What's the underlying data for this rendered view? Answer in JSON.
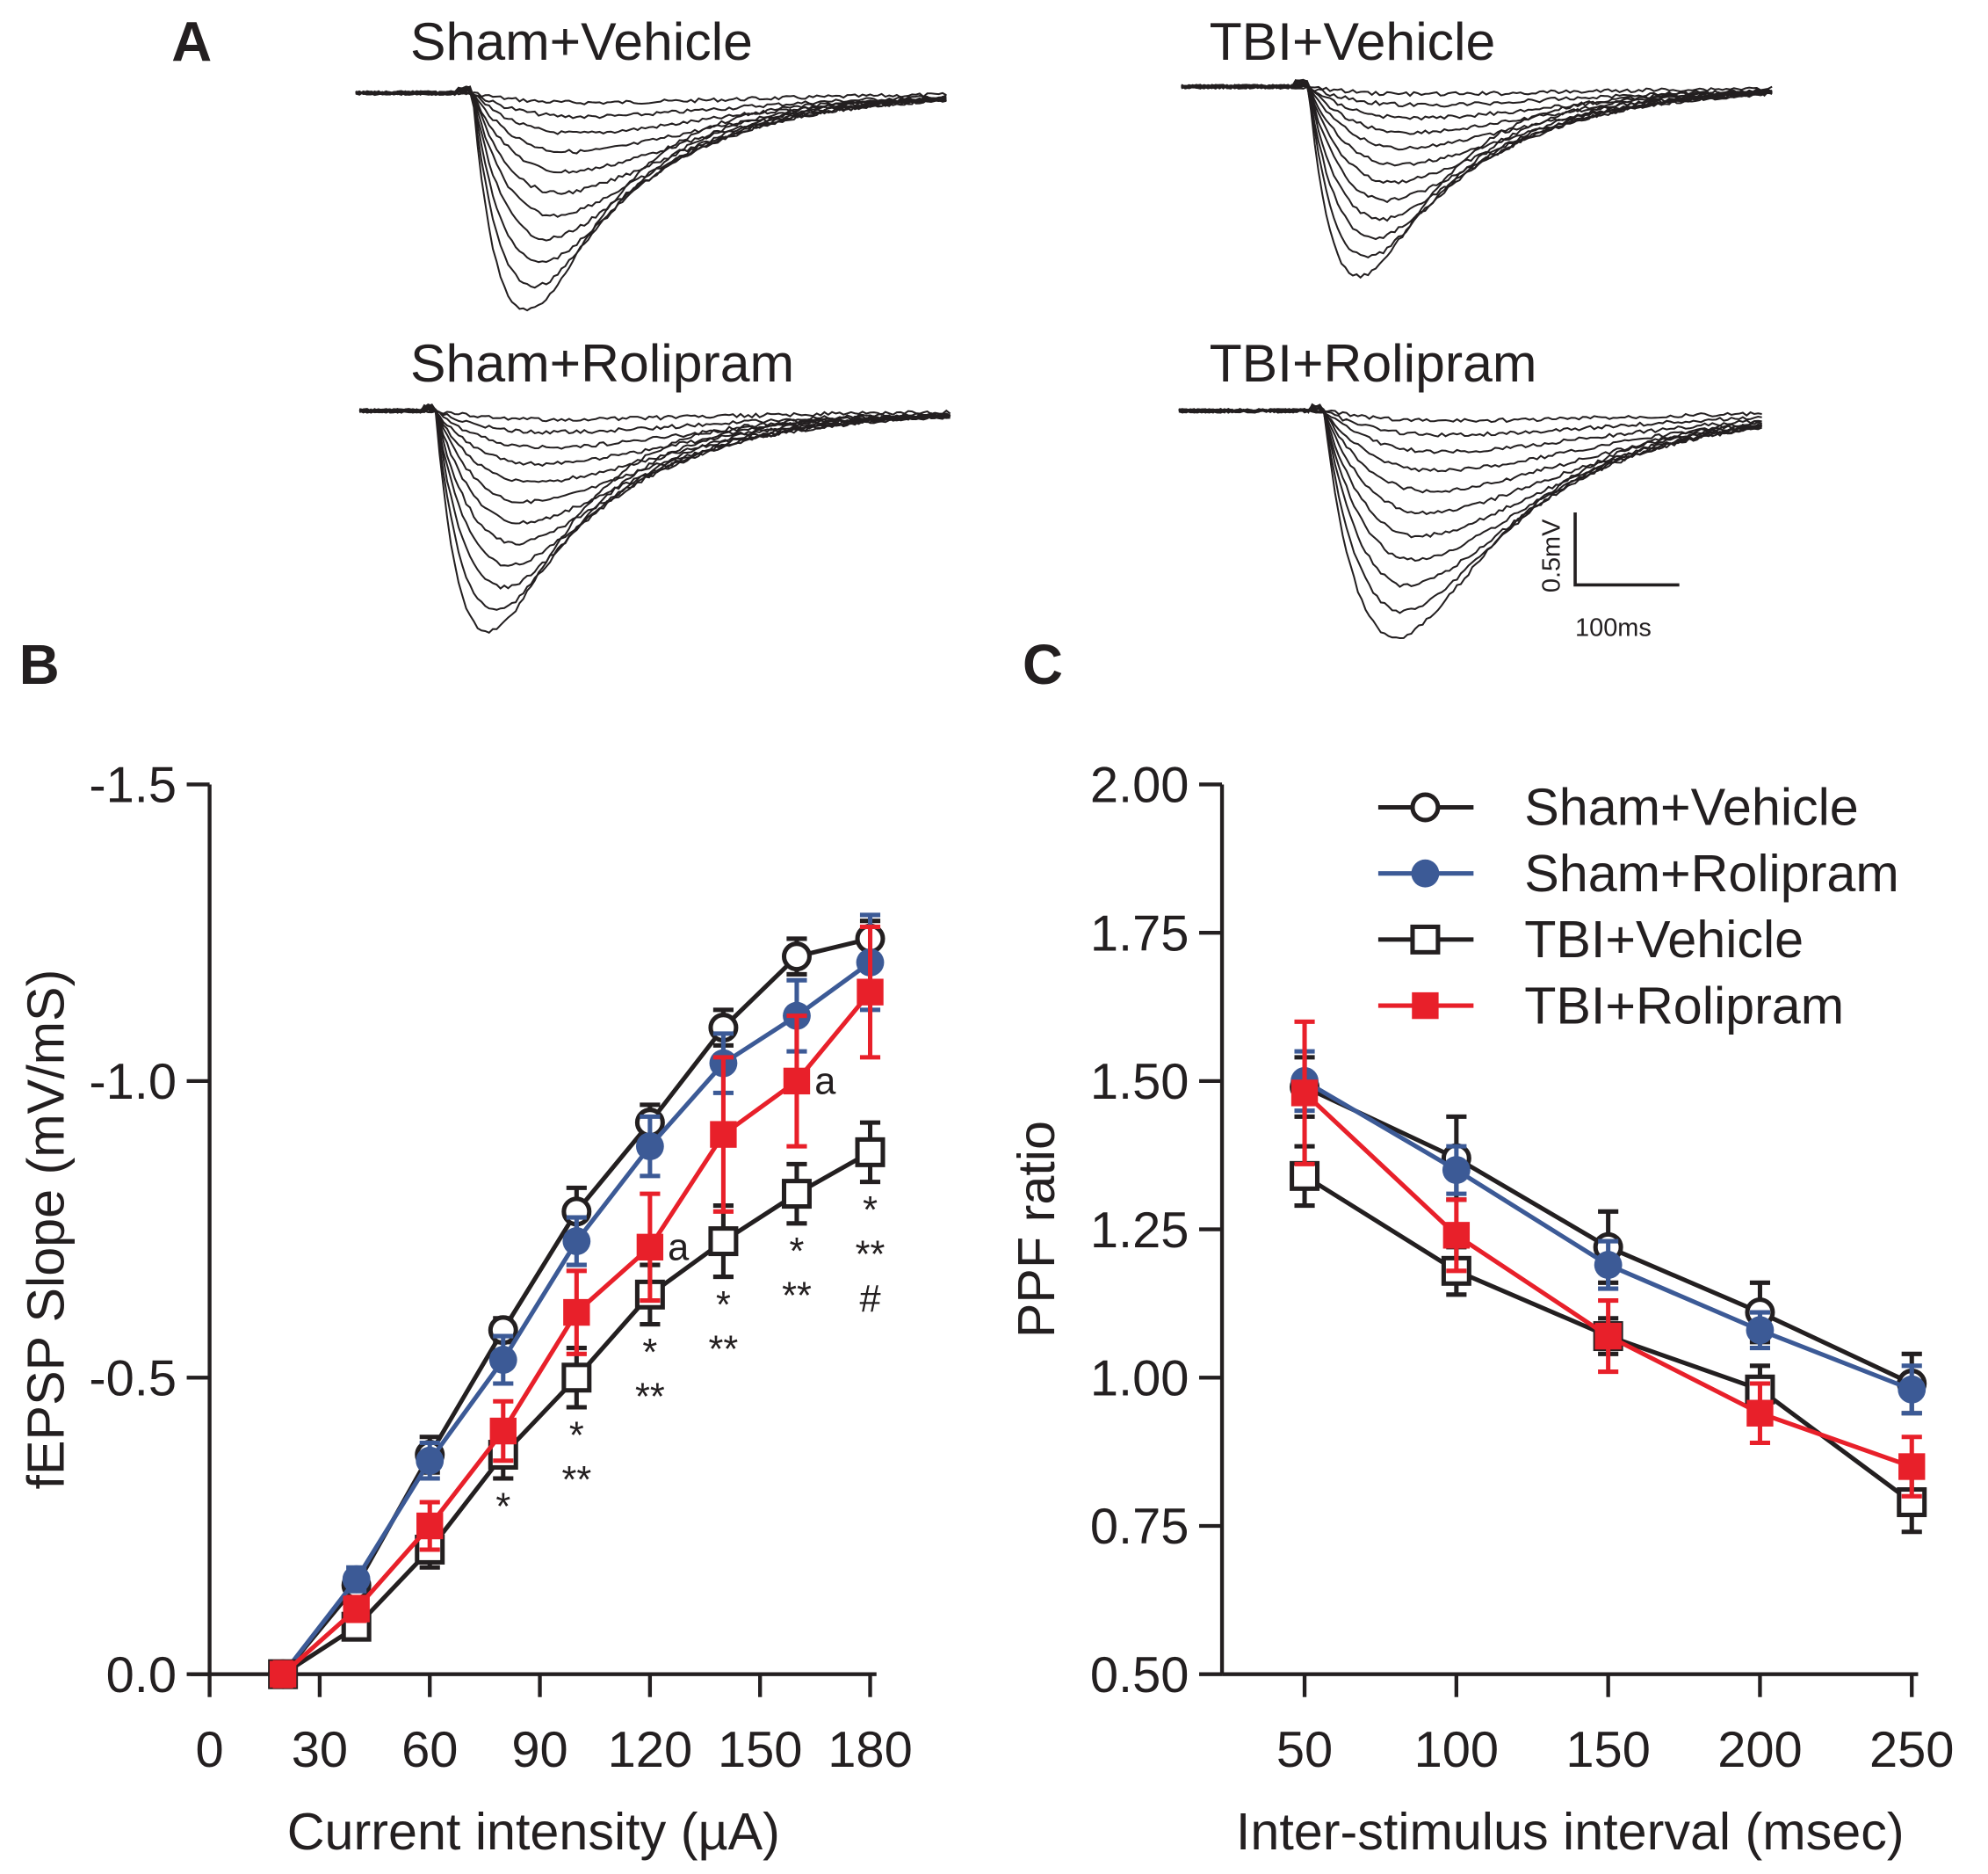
{
  "panel_labels": {
    "a": "A",
    "b": "B",
    "c": "C"
  },
  "traces": {
    "titles": [
      "Sham+Vehicle",
      "TBI+Vehicle",
      "Sham+Rolipram",
      "TBI+Rolipram"
    ],
    "scale_bar": {
      "voltage": "0.5mV",
      "time": "100ms"
    }
  },
  "colors": {
    "sham_vehicle": "#231f20",
    "sham_rolipram": "#3c5a96",
    "tbi_vehicle": "#231f20",
    "tbi_rolipram": "#e8202a"
  },
  "chart_data": [
    {
      "type": "line",
      "panel": "B",
      "xlabel": "Current intensity (µA)",
      "ylabel": "fEPSP Slope (mV/mS)",
      "xlim": [
        0,
        180
      ],
      "ylim": [
        0,
        -1.5
      ],
      "xticks": [
        "0",
        "30",
        "60",
        "90",
        "120",
        "150",
        "180"
      ],
      "xtick_values": [
        0,
        30,
        60,
        90,
        120,
        150,
        180
      ],
      "yticks": [
        "0.0",
        "-0.5",
        "-1.0",
        "-1.5"
      ],
      "ytick_values": [
        0,
        -0.5,
        -1.0,
        -1.5
      ],
      "x": [
        20,
        40,
        60,
        80,
        100,
        120,
        140,
        160,
        180
      ],
      "series": [
        {
          "name": "Sham+Vehicle",
          "key": "sham_vehicle",
          "marker": "open-circle",
          "values": [
            0,
            -0.15,
            -0.37,
            -0.58,
            -0.78,
            -0.93,
            -1.09,
            -1.21,
            -1.24
          ],
          "error": [
            0.01,
            0.02,
            0.03,
            0.02,
            0.04,
            0.03,
            0.03,
            0.03,
            0.03
          ]
        },
        {
          "name": "Sham+Rolipram",
          "key": "sham_rolipram",
          "marker": "filled-circle",
          "values": [
            0,
            -0.16,
            -0.36,
            -0.53,
            -0.73,
            -0.89,
            -1.03,
            -1.11,
            -1.2
          ],
          "error": [
            0.02,
            0.02,
            0.03,
            0.04,
            0.04,
            0.05,
            0.05,
            0.06,
            0.08
          ]
        },
        {
          "name": "TBI+Vehicle",
          "key": "tbi_vehicle",
          "marker": "open-square",
          "values": [
            0,
            -0.08,
            -0.21,
            -0.37,
            -0.5,
            -0.64,
            -0.73,
            -0.81,
            -0.88
          ],
          "error": [
            0.01,
            0.02,
            0.03,
            0.04,
            0.05,
            0.05,
            0.06,
            0.05,
            0.05
          ]
        },
        {
          "name": "TBI+Rolipram",
          "key": "tbi_rolipram",
          "marker": "filled-square",
          "values": [
            0,
            -0.11,
            -0.25,
            -0.41,
            -0.61,
            -0.72,
            -0.91,
            -1.0,
            -1.15
          ],
          "error": [
            0.02,
            0.02,
            0.04,
            0.05,
            0.07,
            0.09,
            0.13,
            0.11,
            0.11
          ]
        }
      ],
      "annotations": [
        {
          "x": 80,
          "lines": [
            "*"
          ],
          "below": "TBI+Vehicle"
        },
        {
          "x": 100,
          "lines": [
            "*",
            "**"
          ],
          "below": "TBI+Vehicle"
        },
        {
          "x": 120,
          "lines": [
            "*",
            "**"
          ],
          "below": "TBI+Vehicle"
        },
        {
          "x": 140,
          "lines": [
            "*",
            "**"
          ],
          "below": "TBI+Vehicle"
        },
        {
          "x": 160,
          "lines": [
            "*",
            "**"
          ],
          "below": "TBI+Vehicle"
        },
        {
          "x": 180,
          "lines": [
            "*",
            "**",
            "#"
          ],
          "below": "TBI+Vehicle"
        },
        {
          "x": 120,
          "lines": [
            "a"
          ],
          "right_of": "TBI+Rolipram"
        },
        {
          "x": 160,
          "lines": [
            "a"
          ],
          "right_of": "TBI+Rolipram"
        }
      ]
    },
    {
      "type": "line",
      "panel": "C",
      "xlabel": "Inter-stimulus interval (msec)",
      "ylabel": "PPF ratio",
      "xlim": [
        50,
        250
      ],
      "ylim": [
        0.5,
        2.0
      ],
      "xticks": [
        "50",
        "100",
        "150",
        "200",
        "250"
      ],
      "xtick_values": [
        50,
        100,
        150,
        200,
        250
      ],
      "yticks": [
        "0.50",
        "0.75",
        "1.00",
        "1.25",
        "1.50",
        "1.75",
        "2.00"
      ],
      "ytick_values": [
        0.5,
        0.75,
        1.0,
        1.25,
        1.5,
        1.75,
        2.0
      ],
      "x": [
        50,
        100,
        150,
        200,
        250
      ],
      "legend": "top-right",
      "series": [
        {
          "name": "Sham+Vehicle",
          "key": "sham_vehicle",
          "marker": "open-circle",
          "values": [
            1.49,
            1.37,
            1.22,
            1.11,
            0.99
          ],
          "error": [
            0.05,
            0.07,
            0.06,
            0.05,
            0.05
          ]
        },
        {
          "name": "Sham+Rolipram",
          "key": "sham_rolipram",
          "marker": "filled-circle",
          "values": [
            1.5,
            1.35,
            1.19,
            1.08,
            0.98
          ],
          "error": [
            0.05,
            0.04,
            0.04,
            0.03,
            0.04
          ]
        },
        {
          "name": "TBI+Vehicle",
          "key": "tbi_vehicle",
          "marker": "open-square",
          "values": [
            1.34,
            1.18,
            1.07,
            0.98,
            0.79
          ],
          "error": [
            0.05,
            0.04,
            0.03,
            0.04,
            0.05
          ]
        },
        {
          "name": "TBI+Rolipram",
          "key": "tbi_rolipram",
          "marker": "filled-square",
          "values": [
            1.48,
            1.24,
            1.07,
            0.94,
            0.85
          ],
          "error": [
            0.12,
            0.06,
            0.06,
            0.05,
            0.05
          ]
        }
      ]
    }
  ]
}
